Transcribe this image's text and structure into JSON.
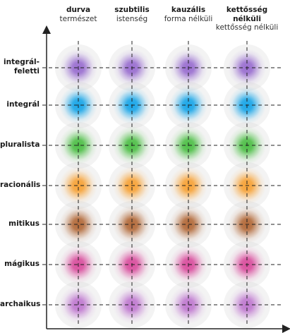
{
  "columns": [
    {
      "title": "durva",
      "subtitle": "természet"
    },
    {
      "title": "szubtilis",
      "subtitle": "istenség"
    },
    {
      "title": "kauzális",
      "subtitle": "forma nélküli"
    },
    {
      "title": "kettősség nélküli",
      "subtitle": "kettősség nélküli"
    }
  ],
  "rows": [
    {
      "label": "integrál-\nfeletti",
      "color": "#9a6fd0"
    },
    {
      "label": "integrál",
      "color": "#1aa6e8"
    },
    {
      "label": "pluralista",
      "color": "#4fbf48"
    },
    {
      "label": "racionális",
      "color": "#f7a338"
    },
    {
      "label": "mitikus",
      "color": "#b36a3a"
    },
    {
      "label": "mágikus",
      "color": "#d94f9e"
    },
    {
      "label": "archaikus",
      "color": "#c07ad0"
    }
  ]
}
